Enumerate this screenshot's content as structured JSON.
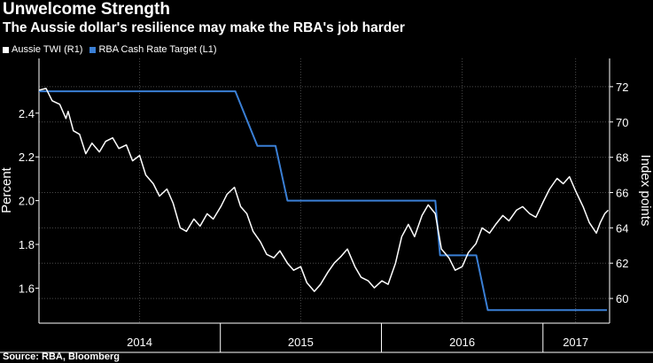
{
  "header": {
    "title": "Unwelcome Strength",
    "subtitle": "The Aussie dollar's resilience may make the RBA's job harder"
  },
  "footer": {
    "source": "Source: RBA, Bloomberg"
  },
  "colors": {
    "background": "#000000",
    "twi_line": "#ffffff",
    "cash_rate_line": "#3a7fd5",
    "grid": "#4a4a4a",
    "axis_text": "#ffffff"
  },
  "chart_data": {
    "type": "line",
    "title": "Unwelcome Strength",
    "subtitle": "The Aussie dollar's resilience may make the RBA's job harder",
    "legend": [
      "Aussie TWI (R1)",
      "RBA Cash Rate Target (L1)"
    ],
    "legend_position": "top-left",
    "grid": true,
    "x_axis": {
      "type": "date",
      "range": [
        "2013-11-15",
        "2017-05-31"
      ],
      "tick_labels": [
        {
          "label": "2014",
          "position": "2014-07-01"
        },
        {
          "label": "2015",
          "position": "2015-07-01"
        },
        {
          "label": "2016",
          "position": "2016-07-01"
        },
        {
          "label": "2017",
          "position": "2017-03-15"
        }
      ],
      "separators": [
        "2014-12-31",
        "2015-12-31",
        "2016-12-31"
      ]
    },
    "left_axis": {
      "label": "Percent",
      "range": [
        1.44,
        2.65
      ],
      "ticks": [
        1.6,
        1.8,
        2.0,
        2.2,
        2.4
      ],
      "tick_labels": [
        "1.6",
        "1.8",
        "2.0",
        "2.2",
        "2.4"
      ]
    },
    "right_axis": {
      "label": "Index points",
      "range": [
        58.6,
        73.6
      ],
      "ticks": [
        60,
        62,
        64,
        66,
        68,
        70,
        72
      ],
      "tick_labels": [
        "60",
        "62",
        "64",
        "66",
        "68",
        "70",
        "72"
      ]
    },
    "series": [
      {
        "name": "RBA Cash Rate Target (L1)",
        "axis": "left",
        "color": "#3a7fd5",
        "points": [
          [
            "2013-11-15",
            2.5
          ],
          [
            "2015-02-03",
            2.5
          ],
          [
            "2015-03-25",
            2.25
          ],
          [
            "2015-05-05",
            2.25
          ],
          [
            "2015-06-01",
            2.0
          ],
          [
            "2016-05-01",
            2.0
          ],
          [
            "2016-05-12",
            1.75
          ],
          [
            "2016-08-02",
            1.75
          ],
          [
            "2016-08-28",
            1.5
          ],
          [
            "2017-05-25",
            1.5
          ]
        ]
      },
      {
        "name": "Aussie TWI (R1)",
        "axis": "right",
        "color": "#ffffff",
        "points": [
          [
            "2013-11-15",
            71.8
          ],
          [
            "2013-12-01",
            71.9
          ],
          [
            "2013-12-15",
            71.2
          ],
          [
            "2014-01-01",
            71.0
          ],
          [
            "2014-01-15",
            70.2
          ],
          [
            "2014-01-20",
            70.6
          ],
          [
            "2014-02-01",
            69.5
          ],
          [
            "2014-02-15",
            69.3
          ],
          [
            "2014-03-01",
            68.2
          ],
          [
            "2014-03-15",
            68.8
          ],
          [
            "2014-04-01",
            68.3
          ],
          [
            "2014-04-15",
            68.9
          ],
          [
            "2014-05-01",
            69.1
          ],
          [
            "2014-05-15",
            68.5
          ],
          [
            "2014-06-01",
            68.7
          ],
          [
            "2014-06-15",
            67.8
          ],
          [
            "2014-07-01",
            68.1
          ],
          [
            "2014-07-15",
            67.0
          ],
          [
            "2014-08-01",
            66.5
          ],
          [
            "2014-08-15",
            65.8
          ],
          [
            "2014-09-01",
            66.2
          ],
          [
            "2014-09-15",
            65.4
          ],
          [
            "2014-10-01",
            64.0
          ],
          [
            "2014-10-15",
            63.8
          ],
          [
            "2014-11-01",
            64.5
          ],
          [
            "2014-11-15",
            64.1
          ],
          [
            "2014-12-01",
            64.8
          ],
          [
            "2014-12-15",
            64.5
          ],
          [
            "2015-01-01",
            65.2
          ],
          [
            "2015-01-15",
            65.9
          ],
          [
            "2015-02-01",
            66.3
          ],
          [
            "2015-02-15",
            65.2
          ],
          [
            "2015-03-01",
            64.8
          ],
          [
            "2015-03-15",
            63.8
          ],
          [
            "2015-04-01",
            63.2
          ],
          [
            "2015-04-15",
            62.5
          ],
          [
            "2015-05-01",
            62.3
          ],
          [
            "2015-05-15",
            62.7
          ],
          [
            "2015-06-01",
            62.0
          ],
          [
            "2015-06-15",
            61.6
          ],
          [
            "2015-07-01",
            61.8
          ],
          [
            "2015-07-15",
            60.9
          ],
          [
            "2015-08-01",
            60.4
          ],
          [
            "2015-08-15",
            60.8
          ],
          [
            "2015-09-01",
            61.5
          ],
          [
            "2015-09-15",
            62.0
          ],
          [
            "2015-10-01",
            62.4
          ],
          [
            "2015-10-15",
            62.8
          ],
          [
            "2015-11-01",
            61.8
          ],
          [
            "2015-11-15",
            61.2
          ],
          [
            "2015-12-01",
            61.0
          ],
          [
            "2015-12-15",
            60.6
          ],
          [
            "2016-01-01",
            61.0
          ],
          [
            "2016-01-15",
            60.8
          ],
          [
            "2016-02-01",
            62.0
          ],
          [
            "2016-02-15",
            63.5
          ],
          [
            "2016-03-01",
            64.2
          ],
          [
            "2016-03-15",
            63.5
          ],
          [
            "2016-04-01",
            64.7
          ],
          [
            "2016-04-15",
            65.3
          ],
          [
            "2016-05-01",
            64.8
          ],
          [
            "2016-05-15",
            62.8
          ],
          [
            "2016-06-01",
            62.3
          ],
          [
            "2016-06-15",
            61.6
          ],
          [
            "2016-07-01",
            61.8
          ],
          [
            "2016-07-15",
            62.6
          ],
          [
            "2016-08-01",
            63.1
          ],
          [
            "2016-08-15",
            64.0
          ],
          [
            "2016-09-01",
            63.7
          ],
          [
            "2016-09-15",
            64.2
          ],
          [
            "2016-10-01",
            64.7
          ],
          [
            "2016-10-15",
            64.4
          ],
          [
            "2016-11-01",
            65.0
          ],
          [
            "2016-11-15",
            65.2
          ],
          [
            "2016-12-01",
            64.8
          ],
          [
            "2016-12-15",
            64.6
          ],
          [
            "2017-01-01",
            65.5
          ],
          [
            "2017-01-15",
            66.2
          ],
          [
            "2017-02-01",
            66.8
          ],
          [
            "2017-02-15",
            66.5
          ],
          [
            "2017-03-01",
            66.9
          ],
          [
            "2017-03-15",
            66.1
          ],
          [
            "2017-04-01",
            65.2
          ],
          [
            "2017-04-15",
            64.3
          ],
          [
            "2017-05-01",
            63.7
          ],
          [
            "2017-05-10",
            64.3
          ],
          [
            "2017-05-20",
            64.8
          ],
          [
            "2017-05-28",
            65.0
          ]
        ]
      }
    ]
  }
}
